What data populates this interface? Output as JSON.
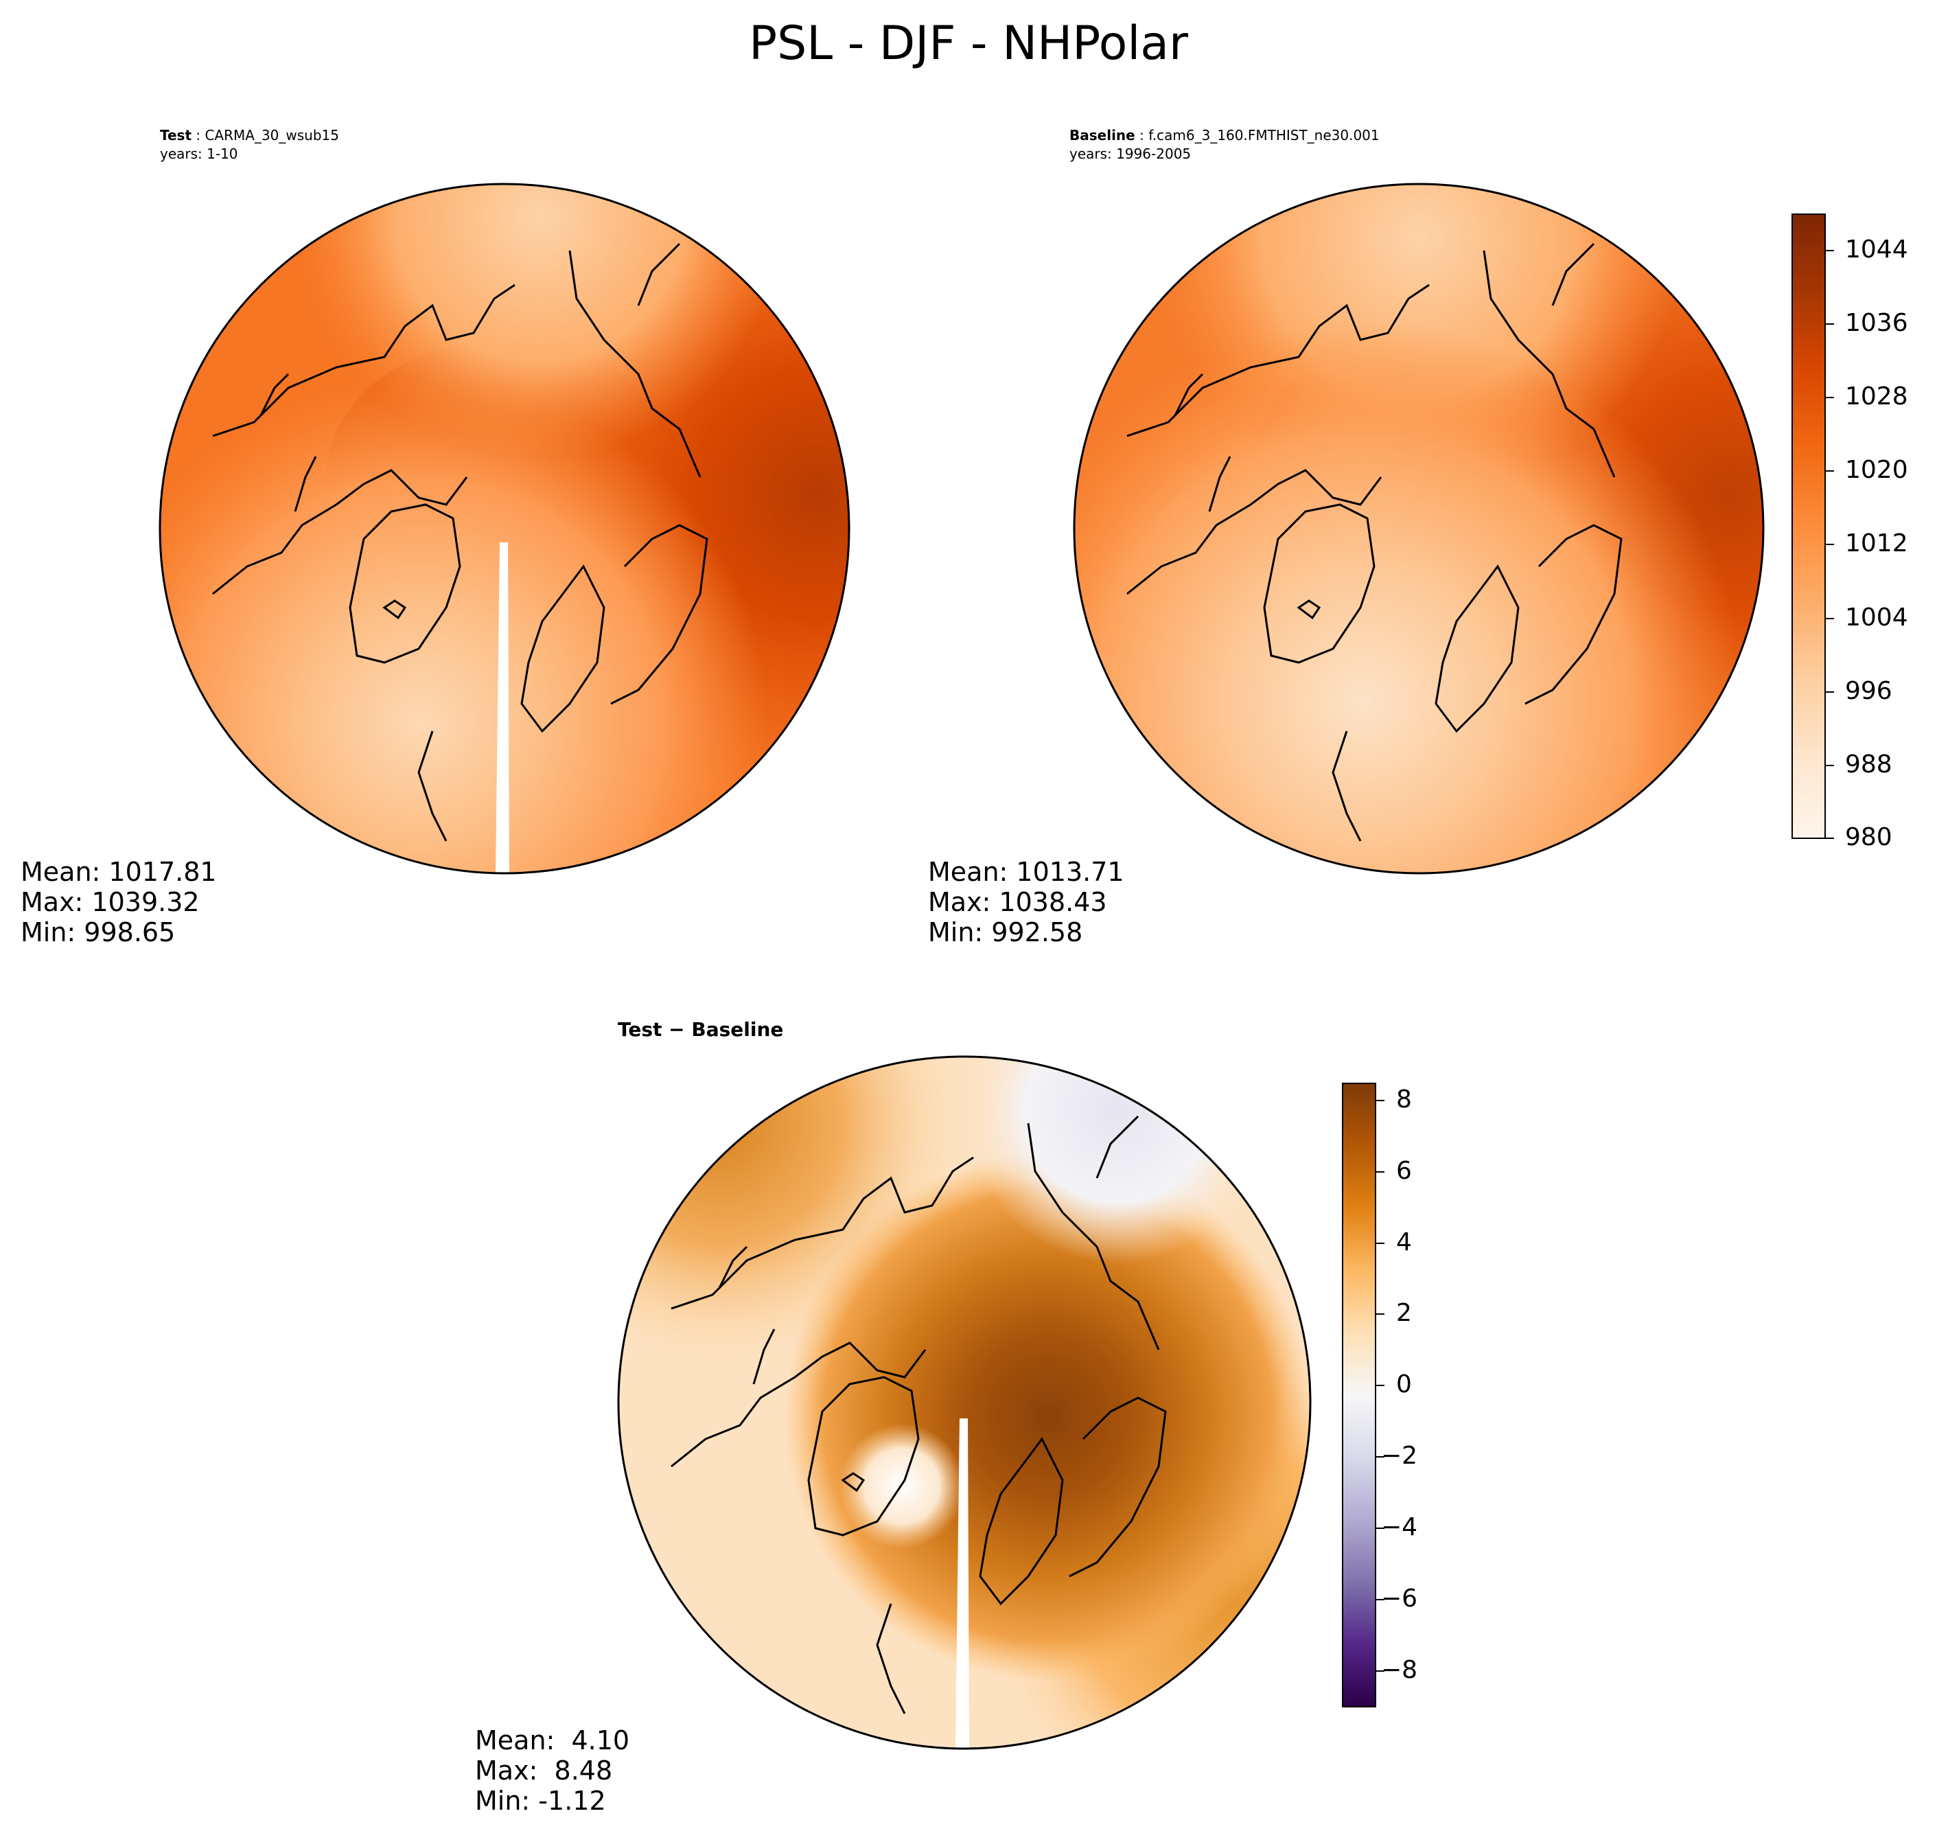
{
  "figure": {
    "title": "PSL - DJF - NHPolar"
  },
  "panels": {
    "test": {
      "label": "Test",
      "case": "CARMA_30_wsub15",
      "years": "years: 1-10",
      "stats": {
        "mean": "Mean: 1017.81",
        "max": "Max: 1039.32",
        "min": "Min: 998.65"
      }
    },
    "baseline": {
      "label": "Baseline",
      "case": "f.cam6_3_160.FMTHIST_ne30.001",
      "years": "years: 1996-2005",
      "stats": {
        "mean": "Mean: 1013.71",
        "max": "Max: 1038.43",
        "min": "Min: 992.58"
      }
    },
    "difference": {
      "title": "Test − Baseline",
      "stats": {
        "mean": "Mean:  4.10",
        "max": "Max:  8.48",
        "min": "Min: -1.12"
      }
    }
  },
  "colorbars": {
    "field": {
      "ticks": [
        "1044",
        "1036",
        "1028",
        "1020",
        "1012",
        "1004",
        "996",
        "988",
        "980"
      ],
      "colormap": [
        "#fff5eb",
        "#fee6ce",
        "#fdd0a2",
        "#fdae6b",
        "#fd8d3c",
        "#f16913",
        "#d94801",
        "#a63603",
        "#7f2704"
      ]
    },
    "difference": {
      "ticks": [
        "8",
        "6",
        "4",
        "2",
        "0",
        "−2",
        "−4",
        "−6",
        "−8"
      ],
      "colormap": [
        "#2d004b",
        "#542788",
        "#8073ac",
        "#b2abd2",
        "#d8daeb",
        "#f7f7f7",
        "#fee0b6",
        "#fdb863",
        "#e08214",
        "#b35806",
        "#7f3b08"
      ]
    }
  }
}
